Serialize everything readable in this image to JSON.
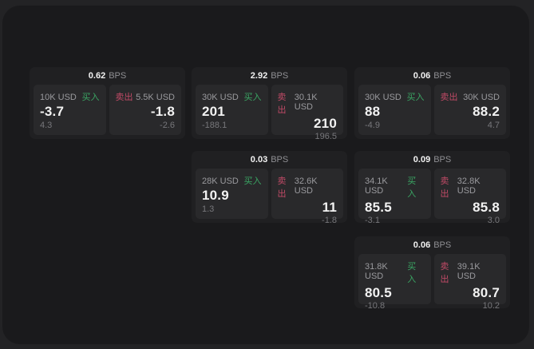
{
  "colors": {
    "bg": "#232325",
    "panel": "#1a1a1c",
    "card": "#202022",
    "subpanel": "#29292b",
    "buy": "#3aa563",
    "sell": "#c04a66",
    "text_primary": "#f2f2f2",
    "text_secondary": "#9a9a9e",
    "text_muted": "#77777b"
  },
  "labels": {
    "bps_unit": "BPS",
    "buy": "买入",
    "sell": "卖出"
  },
  "cards": [
    {
      "bps": "0.62",
      "col": 0,
      "row": 0,
      "buy": {
        "size": "10K USD",
        "value": "-3.7",
        "sub": "4.3"
      },
      "sell": {
        "size": "5.5K USD",
        "value": "-1.8",
        "sub": "-2.6"
      }
    },
    {
      "bps": "2.92",
      "col": 1,
      "row": 0,
      "buy": {
        "size": "30K USD",
        "value": "201",
        "sub": "-188.1"
      },
      "sell": {
        "size": "30.1K USD",
        "value": "210",
        "sub": "196.5"
      }
    },
    {
      "bps": "0.06",
      "col": 2,
      "row": 0,
      "buy": {
        "size": "30K USD",
        "value": "88",
        "sub": "-4.9"
      },
      "sell": {
        "size": "30K USD",
        "value": "88.2",
        "sub": "4.7"
      }
    },
    {
      "bps": "0.03",
      "col": 1,
      "row": 1,
      "buy": {
        "size": "28K USD",
        "value": "10.9",
        "sub": "1.3"
      },
      "sell": {
        "size": "32.6K USD",
        "value": "11",
        "sub": "-1.8"
      }
    },
    {
      "bps": "0.09",
      "col": 2,
      "row": 1,
      "buy": {
        "size": "34.1K USD",
        "value": "85.5",
        "sub": "-3.1"
      },
      "sell": {
        "size": "32.8K USD",
        "value": "85.8",
        "sub": "3.0"
      }
    },
    {
      "bps": "0.06",
      "col": 2,
      "row": 2,
      "buy": {
        "size": "31.8K USD",
        "value": "80.5",
        "sub": "-10.8"
      },
      "sell": {
        "size": "39.1K USD",
        "value": "80.7",
        "sub": "10.2"
      }
    }
  ]
}
